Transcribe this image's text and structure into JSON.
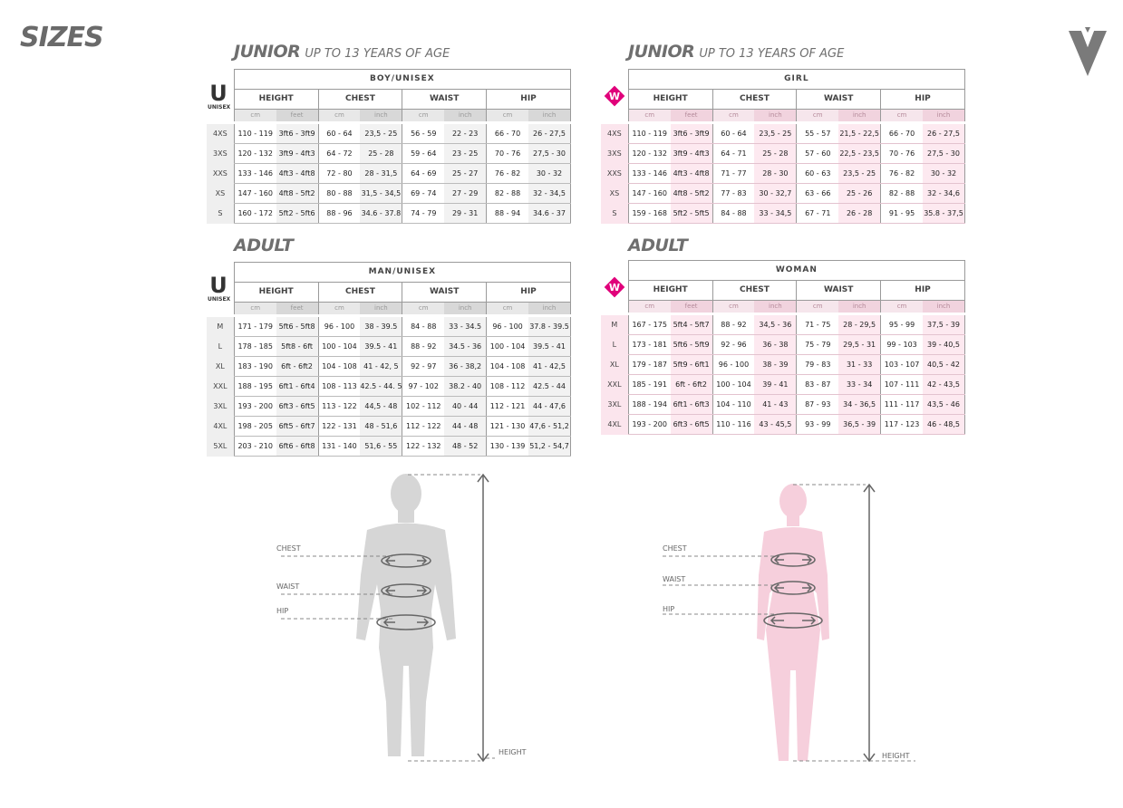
{
  "page_title": "SIZES",
  "brand": {
    "logo_icon": "brand-chevron-icon",
    "logo_color": "#7a7a7a"
  },
  "colors": {
    "unisex_badge": "#333333",
    "women_badge": "#e0007a",
    "female_figure": "#f6cfdc",
    "male_figure": "#d6d6d6"
  },
  "headings": {
    "junior_left": {
      "main": "JUNIOR",
      "sub": "UP TO 13 YEARS OF AGE"
    },
    "junior_right": {
      "main": "JUNIOR",
      "sub": "UP TO 13 YEARS OF AGE"
    },
    "adult_left": {
      "main": "ADULT"
    },
    "adult_right": {
      "main": "ADULT"
    }
  },
  "badges": {
    "unisex_letter": "U",
    "unisex_text": "UNISEX",
    "women_letter": "W"
  },
  "columns": {
    "height": "HEIGHT",
    "chest": "CHEST",
    "waist": "WAIST",
    "hip": "HIP"
  },
  "units": {
    "cm": "cm",
    "feet": "feet",
    "inch": "inch"
  },
  "tables": {
    "junior_boy": {
      "group": "BOY/UNISEX",
      "rows": [
        {
          "size": "4XS",
          "height_cm": "110 - 119",
          "height_ft": "3ft6 - 3ft9",
          "chest_cm": "60 - 64",
          "chest_in": "23,5 - 25",
          "waist_cm": "56 - 59",
          "waist_in": "22 - 23",
          "hip_cm": "66 - 70",
          "hip_in": "26 - 27,5"
        },
        {
          "size": "3XS",
          "height_cm": "120 - 132",
          "height_ft": "3ft9 - 4ft3",
          "chest_cm": "64 - 72",
          "chest_in": "25 - 28",
          "waist_cm": "59 - 64",
          "waist_in": "23 - 25",
          "hip_cm": "70 - 76",
          "hip_in": "27,5 - 30"
        },
        {
          "size": "XXS",
          "height_cm": "133 - 146",
          "height_ft": "4ft3 - 4ft8",
          "chest_cm": "72 - 80",
          "chest_in": "28 - 31,5",
          "waist_cm": "64 - 69",
          "waist_in": "25 - 27",
          "hip_cm": "76 - 82",
          "hip_in": "30 - 32"
        },
        {
          "size": "XS",
          "height_cm": "147 - 160",
          "height_ft": "4ft8 - 5ft2",
          "chest_cm": "80 - 88",
          "chest_in": "31,5 - 34,5",
          "waist_cm": "69 - 74",
          "waist_in": "27 - 29",
          "hip_cm": "82 - 88",
          "hip_in": "32 - 34,5"
        },
        {
          "size": "S",
          "height_cm": "160 - 172",
          "height_ft": "5ft2 - 5ft6",
          "chest_cm": "88 - 96",
          "chest_in": "34.6 - 37.8",
          "waist_cm": "74 - 79",
          "waist_in": "29 - 31",
          "hip_cm": "88 - 94",
          "hip_in": "34.6 - 37"
        }
      ]
    },
    "junior_girl": {
      "group": "GIRL",
      "rows": [
        {
          "size": "4XS",
          "height_cm": "110 - 119",
          "height_ft": "3ft6 - 3ft9",
          "chest_cm": "60 - 64",
          "chest_in": "23,5 - 25",
          "waist_cm": "55 - 57",
          "waist_in": "21,5 - 22,5",
          "hip_cm": "66 - 70",
          "hip_in": "26 - 27,5"
        },
        {
          "size": "3XS",
          "height_cm": "120 - 132",
          "height_ft": "3ft9 - 4ft3",
          "chest_cm": "64 - 71",
          "chest_in": "25 - 28",
          "waist_cm": "57 - 60",
          "waist_in": "22,5 - 23,5",
          "hip_cm": "70 - 76",
          "hip_in": "27,5 - 30"
        },
        {
          "size": "XXS",
          "height_cm": "133 - 146",
          "height_ft": "4ft3 - 4ft8",
          "chest_cm": "71 - 77",
          "chest_in": "28 - 30",
          "waist_cm": "60 - 63",
          "waist_in": "23,5 - 25",
          "hip_cm": "76 - 82",
          "hip_in": "30 - 32"
        },
        {
          "size": "XS",
          "height_cm": "147 - 160",
          "height_ft": "4ft8 - 5ft2",
          "chest_cm": "77 - 83",
          "chest_in": "30 - 32,7",
          "waist_cm": "63 - 66",
          "waist_in": "25 - 26",
          "hip_cm": "82 - 88",
          "hip_in": "32 - 34,6"
        },
        {
          "size": "S",
          "height_cm": "159 - 168",
          "height_ft": "5ft2 - 5ft5",
          "chest_cm": "84 - 88",
          "chest_in": "33 - 34,5",
          "waist_cm": "67 - 71",
          "waist_in": "26 - 28",
          "hip_cm": "91 - 95",
          "hip_in": "35.8 - 37,5"
        }
      ]
    },
    "adult_man": {
      "group": "MAN/UNISEX",
      "rows": [
        {
          "size": "M",
          "height_cm": "171 - 179",
          "height_ft": "5ft6 - 5ft8",
          "chest_cm": "96 - 100",
          "chest_in": "38 - 39.5",
          "waist_cm": "84 - 88",
          "waist_in": "33 - 34.5",
          "hip_cm": "96 - 100",
          "hip_in": "37.8 - 39.5"
        },
        {
          "size": "L",
          "height_cm": "178 - 185",
          "height_ft": "5ft8 - 6ft",
          "chest_cm": "100 - 104",
          "chest_in": "39.5 - 41",
          "waist_cm": "88 - 92",
          "waist_in": "34.5 - 36",
          "hip_cm": "100 - 104",
          "hip_in": "39.5 - 41"
        },
        {
          "size": "XL",
          "height_cm": "183 - 190",
          "height_ft": "6ft - 6ft2",
          "chest_cm": "104 - 108",
          "chest_in": "41 - 42, 5",
          "waist_cm": "92 - 97",
          "waist_in": "36 - 38,2",
          "hip_cm": "104 - 108",
          "hip_in": "41 - 42,5"
        },
        {
          "size": "XXL",
          "height_cm": "188 - 195",
          "height_ft": "6ft1 - 6ft4",
          "chest_cm": "108 - 113",
          "chest_in": "42.5 - 44. 5",
          "waist_cm": "97 - 102",
          "waist_in": "38.2 - 40",
          "hip_cm": "108 - 112",
          "hip_in": "42.5 - 44"
        },
        {
          "size": "3XL",
          "height_cm": "193 - 200",
          "height_ft": "6ft3 - 6ft5",
          "chest_cm": "113 - 122",
          "chest_in": "44,5 - 48",
          "waist_cm": "102 - 112",
          "waist_in": "40 - 44",
          "hip_cm": "112 - 121",
          "hip_in": "44 - 47,6"
        },
        {
          "size": "4XL",
          "height_cm": "198 - 205",
          "height_ft": "6ft5 - 6ft7",
          "chest_cm": "122 - 131",
          "chest_in": "48 - 51,6",
          "waist_cm": "112 - 122",
          "waist_in": "44 - 48",
          "hip_cm": "121 - 130",
          "hip_in": "47,6 - 51,2"
        },
        {
          "size": "5XL",
          "height_cm": "203 - 210",
          "height_ft": "6ft6 - 6ft8",
          "chest_cm": "131 - 140",
          "chest_in": "51,6 - 55",
          "waist_cm": "122 - 132",
          "waist_in": "48 - 52",
          "hip_cm": "130 - 139",
          "hip_in": "51,2 - 54,7"
        }
      ]
    },
    "adult_woman": {
      "group": "WOMAN",
      "rows": [
        {
          "size": "M",
          "height_cm": "167 - 175",
          "height_ft": "5ft4 - 5ft7",
          "chest_cm": "88 - 92",
          "chest_in": "34,5 - 36",
          "waist_cm": "71 - 75",
          "waist_in": "28 - 29,5",
          "hip_cm": "95 - 99",
          "hip_in": "37,5 - 39"
        },
        {
          "size": "L",
          "height_cm": "173 - 181",
          "height_ft": "5ft6 - 5ft9",
          "chest_cm": "92 - 96",
          "chest_in": "36 - 38",
          "waist_cm": "75 - 79",
          "waist_in": "29,5 - 31",
          "hip_cm": "99 - 103",
          "hip_in": "39 - 40,5"
        },
        {
          "size": "XL",
          "height_cm": "179 - 187",
          "height_ft": "5ft9 - 6ft1",
          "chest_cm": "96 - 100",
          "chest_in": "38 - 39",
          "waist_cm": "79 - 83",
          "waist_in": "31 - 33",
          "hip_cm": "103 - 107",
          "hip_in": "40,5 - 42"
        },
        {
          "size": "XXL",
          "height_cm": "185 - 191",
          "height_ft": "6ft - 6ft2",
          "chest_cm": "100 - 104",
          "chest_in": "39 - 41",
          "waist_cm": "83 - 87",
          "waist_in": "33 - 34",
          "hip_cm": "107 - 111",
          "hip_in": "42 - 43,5"
        },
        {
          "size": "3XL",
          "height_cm": "188 - 194",
          "height_ft": "6ft1 - 6ft3",
          "chest_cm": "104 - 110",
          "chest_in": "41 - 43",
          "waist_cm": "87 - 93",
          "waist_in": "34 - 36,5",
          "hip_cm": "111 - 117",
          "hip_in": "43,5 - 46"
        },
        {
          "size": "4XL",
          "height_cm": "193 - 200",
          "height_ft": "6ft3 - 6ft5",
          "chest_cm": "110 - 116",
          "chest_in": "43 - 45,5",
          "waist_cm": "93 - 99",
          "waist_in": "36,5 - 39",
          "hip_cm": "117 - 123",
          "hip_in": "46 - 48,5"
        }
      ]
    }
  },
  "figures": {
    "male": {
      "chest": "CHEST",
      "waist": "WAIST",
      "hip": "HIP",
      "height": "HEIGHT"
    },
    "female": {
      "chest": "CHEST",
      "waist": "WAIST",
      "hip": "HIP",
      "height": "HEIGHT"
    }
  }
}
